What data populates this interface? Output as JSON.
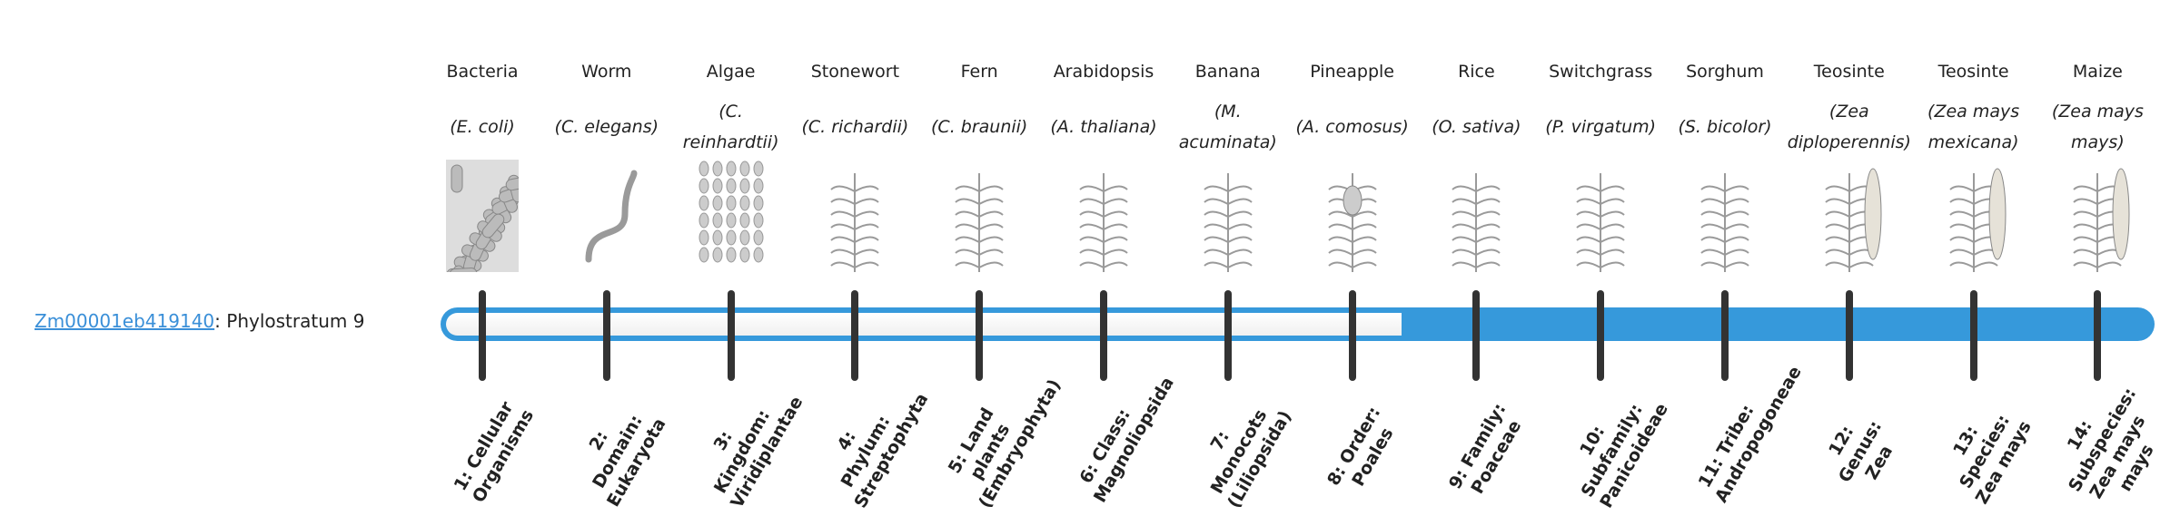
{
  "gene": {
    "id": "Zm00001eb419140",
    "suffix": ": Phylostratum 9"
  },
  "phylostratum": 9,
  "colors": {
    "accent": "#3699db",
    "tick": "#333333",
    "link": "#3a8fd8"
  },
  "strata": [
    {
      "common": "Bacteria",
      "sci": "(E. coli)",
      "label": "1: Cellular Organisms",
      "icon": "bacteria-icon"
    },
    {
      "common": "Worm",
      "sci": "(C. elegans)",
      "label": "2: Domain: Eukaryota",
      "icon": "worm-icon"
    },
    {
      "common": "Algae",
      "sci": "(C. reinhardtii)",
      "label": "3: Kingdom: Viridiplantae",
      "icon": "algae-icon"
    },
    {
      "common": "Stonewort",
      "sci": "(C. richardii)",
      "label": "4: Phylum: Streptophyta",
      "icon": "stonewort-icon"
    },
    {
      "common": "Fern",
      "sci": "(C. braunii)",
      "label": "5: Land plants (Embryophyta)",
      "icon": "fern-icon"
    },
    {
      "common": "Arabidopsis",
      "sci": "(A. thaliana)",
      "label": "6: Class: Magnoliopsida",
      "icon": "arabidopsis-icon"
    },
    {
      "common": "Banana",
      "sci": "(M. acuminata)",
      "label": "7: Monocots (Liliopsida)",
      "icon": "banana-icon"
    },
    {
      "common": "Pineapple",
      "sci": "(A. comosus)",
      "label": "8: Order: Poales",
      "icon": "pineapple-icon"
    },
    {
      "common": "Rice",
      "sci": "(O. sativa)",
      "label": "9: Family: Poaceae",
      "icon": "rice-icon"
    },
    {
      "common": "Switchgrass",
      "sci": "(P. virgatum)",
      "label": "10: Subfamily: Panicoideae",
      "icon": "switchgrass-icon"
    },
    {
      "common": "Sorghum",
      "sci": "(S. bicolor)",
      "label": "11: Tribe: Andropogoneae",
      "icon": "sorghum-icon"
    },
    {
      "common": "Teosinte",
      "sci": "(Zea diploperennis)",
      "label": "12: Genus: Zea",
      "icon": "teosinte-icon"
    },
    {
      "common": "Teosinte",
      "sci": "(Zea mays mexicana)",
      "label": "13: Species: Zea mays",
      "icon": "teosinte-icon"
    },
    {
      "common": "Maize",
      "sci": "(Zea mays mays)",
      "label": "14: Subspecies: Zea mays mays",
      "icon": "maize-icon"
    }
  ]
}
